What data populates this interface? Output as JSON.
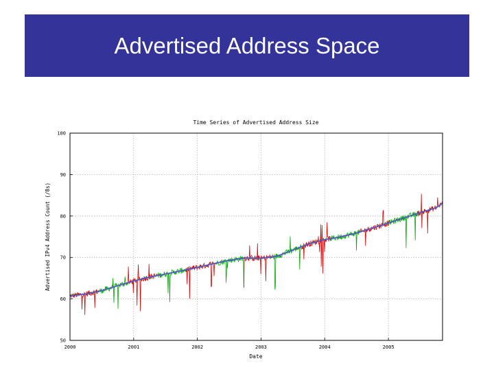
{
  "slide": {
    "title": "Advertised Address Space",
    "title_bar_color": "#333399"
  },
  "chart_data": {
    "type": "line",
    "title": "Time Series of Advertised Address Size",
    "xlabel": "Date",
    "ylabel": "Advertised IPv4 Address Count (/8s)",
    "x_ticks": [
      "2000",
      "2001",
      "2002",
      "2003",
      "2004",
      "2005"
    ],
    "y_ticks": [
      50,
      60,
      70,
      80,
      90,
      100
    ],
    "x_range": [
      2000.0,
      2005.85
    ],
    "ylim": [
      50,
      100
    ],
    "grid": true,
    "legend": "none",
    "colors": {
      "raw_red": "#dd0000",
      "raw_green": "#00aa00",
      "trend": "#5555cc",
      "grid": "#b0b0b0"
    },
    "series": [
      {
        "x": [
          2000.0,
          2000.25,
          2000.5,
          2000.75,
          2001.0,
          2001.25,
          2001.5,
          2001.75,
          2002.0,
          2002.25,
          2002.5,
          2002.75,
          2003.0,
          2003.25,
          2003.5,
          2003.75,
          2004.0,
          2004.25,
          2004.5,
          2004.75,
          2005.0,
          2005.25,
          2005.5,
          2005.75,
          2005.85
        ],
        "values": [
          60.7,
          61.2,
          62.0,
          63.2,
          64.3,
          65.3,
          66.0,
          66.8,
          67.6,
          68.5,
          69.3,
          69.9,
          69.8,
          70.3,
          71.8,
          73.3,
          74.3,
          75.0,
          75.9,
          77.1,
          78.3,
          79.6,
          80.8,
          82.0,
          83.1
        ]
      }
    ]
  }
}
